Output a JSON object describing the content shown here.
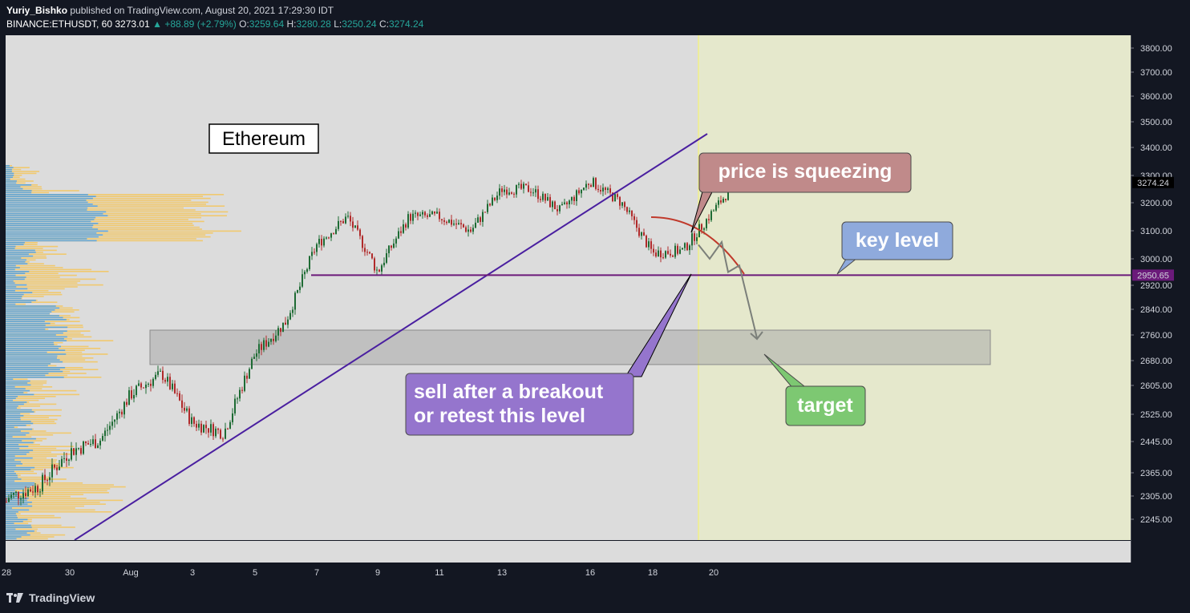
{
  "header": {
    "author": "Yuriy_Bishko",
    "published": "published on TradingView.com, August 20, 2021 17:29:30 IDT",
    "symbol": "BINANCE:ETHUSDT, 60",
    "last": "3273.01",
    "change": "▲ +88.89 (+2.79%)",
    "open_label": "O:",
    "open": "3259.64",
    "high_label": "H:",
    "high": "3280.28",
    "low_label": "L:",
    "low": "3250.24",
    "close_label": "C:",
    "close": "3274.24"
  },
  "footer": {
    "brand": "TradingView",
    "icon": "tradingview-logo-icon"
  },
  "annotations": {
    "title": "Ethereum",
    "squeeze": "price is squeezing",
    "key_level": "key level",
    "sell_line1": "sell after a breakout",
    "sell_line2": "or retest this level",
    "target": "target"
  },
  "colors": {
    "background": "#131722",
    "pane": "#dcdcdc",
    "forecast_zone": "#e5e8cc",
    "up_candle": "#1e6b34",
    "down_candle": "#b02a2a",
    "trendline": "#4a1fa0",
    "key_line": "#6b1a7a",
    "zone_box": "#a9a9a9",
    "squeeze_label": "#c08a8a",
    "key_label": "#8faadc",
    "sell_label": "#9575cd",
    "target_label": "#7dc872",
    "volume_profile_blue": "#4a9de0",
    "volume_profile_yellow": "#f5c55a"
  },
  "chart_data": {
    "type": "candlestick",
    "symbol": "BINANCE:ETHUSDT",
    "interval": "60",
    "x_tick_labels": [
      "28",
      "30",
      "Aug",
      "3",
      "5",
      "7",
      "9",
      "11",
      "13",
      "16",
      "18",
      "20"
    ],
    "y_tick_labels": [
      "3800.00",
      "3700.00",
      "3600.00",
      "3500.00",
      "3400.00",
      "3300.00",
      "3200.00",
      "3100.00",
      "3000.00",
      "2920.00",
      "2840.00",
      "2760.00",
      "2680.00",
      "2605.00",
      "2525.00",
      "2445.00",
      "2365.00",
      "2305.00",
      "2245.00"
    ],
    "y_ticks": [
      3800,
      3700,
      3600,
      3500,
      3400,
      3300,
      3200,
      3100,
      3000,
      2920,
      2840,
      2760,
      2680,
      2605,
      2525,
      2445,
      2365,
      2305,
      2245
    ],
    "ylim": [
      2210,
      3860
    ],
    "last_price": 3274.24,
    "last_price_label": "3274.24",
    "key_level": 2950.65,
    "key_level_label": "2950.65",
    "target_zone": [
      2668,
      2775
    ],
    "price_path": [
      [
        "07-27",
        2290
      ],
      [
        "07-28",
        2300
      ],
      [
        "07-29",
        2330
      ],
      [
        "07-30",
        2420
      ],
      [
        "07-31",
        2450
      ],
      [
        "08-01",
        2580
      ],
      [
        "08-02",
        2640
      ],
      [
        "08-03",
        2500
      ],
      [
        "08-04",
        2470
      ],
      [
        "08-05",
        2700
      ],
      [
        "08-06",
        2800
      ],
      [
        "08-07",
        3050
      ],
      [
        "08-08",
        3150
      ],
      [
        "08-09",
        2960
      ],
      [
        "08-10",
        3150
      ],
      [
        "08-11",
        3150
      ],
      [
        "08-12",
        3100
      ],
      [
        "08-13",
        3250
      ],
      [
        "08-14",
        3250
      ],
      [
        "08-15",
        3170
      ],
      [
        "08-16",
        3280
      ],
      [
        "08-17",
        3200
      ],
      [
        "08-18",
        3020
      ],
      [
        "08-19",
        3030
      ],
      [
        "08-20",
        3274
      ]
    ],
    "forecast_path": [
      3050,
      3000,
      3060,
      2960,
      2980,
      2750
    ]
  }
}
